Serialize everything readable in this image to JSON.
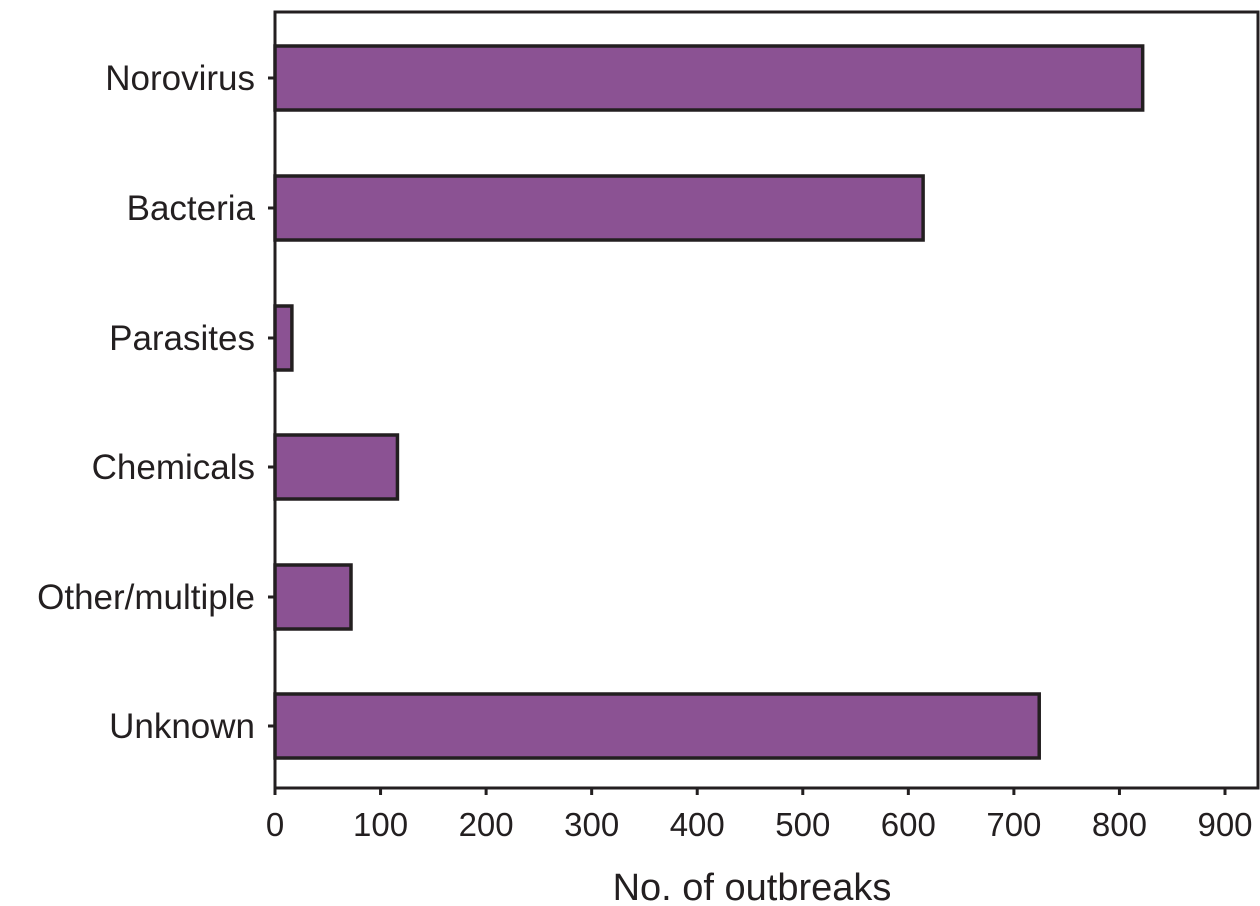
{
  "chart_data": {
    "type": "bar",
    "orientation": "horizontal",
    "categories": [
      "Norovirus",
      "Bacteria",
      "Parasites",
      "Chemicals",
      "Other/multiple",
      "Unknown"
    ],
    "values": [
      822,
      614,
      16,
      116,
      72,
      724
    ],
    "title": "",
    "xlabel": "No. of outbreaks",
    "ylabel": "",
    "xlim": [
      0,
      900
    ],
    "xticks": [
      0,
      100,
      200,
      300,
      400,
      500,
      600,
      700,
      800,
      900
    ],
    "xtick_labels": [
      "0",
      "100",
      "200",
      "300",
      "400",
      "500",
      "600",
      "700",
      "800",
      "900"
    ],
    "grid": false,
    "legend": "none",
    "colors": {
      "bar_fill": "#8b5293",
      "bar_stroke": "#231f20",
      "axis": "#231f20",
      "text": "#231f20",
      "background": "#ffffff"
    }
  }
}
